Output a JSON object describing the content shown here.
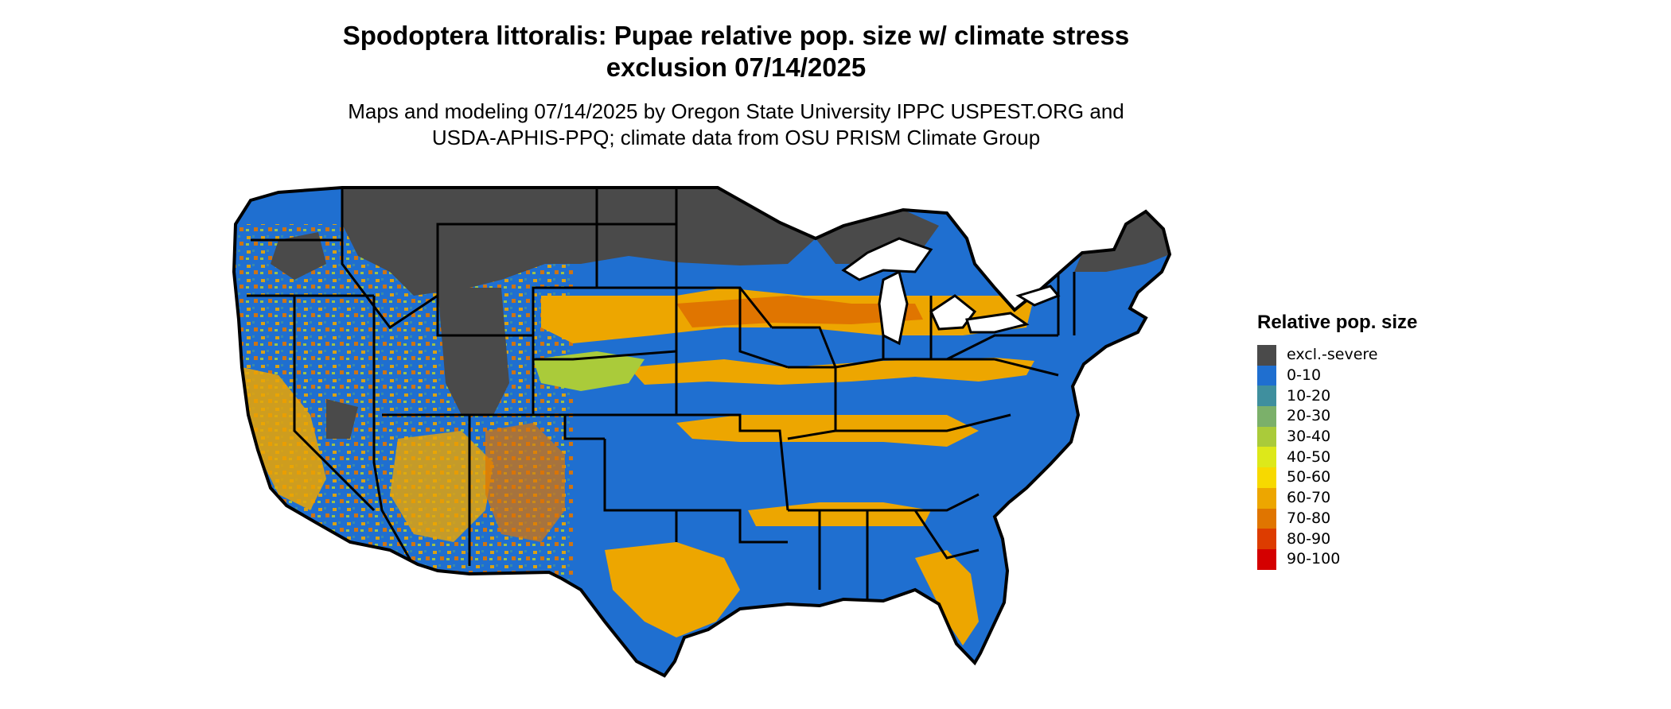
{
  "title_line1": "Spodoptera littoralis: Pupae relative pop. size w/ climate stress",
  "title_line2": "exclusion 07/14/2025",
  "subtitle_line1": "Maps and modeling 07/14/2025 by Oregon State University IPPC USPEST.ORG and",
  "subtitle_line2": "USDA-APHIS-PPQ; climate data from OSU PRISM Climate Group",
  "legend": {
    "title": "Relative pop. size",
    "items": [
      {
        "label": "excl.-severe",
        "color": "#4a4a4a"
      },
      {
        "label": "0-10",
        "color": "#1f6fd0"
      },
      {
        "label": "10-20",
        "color": "#3f8f9e"
      },
      {
        "label": "20-30",
        "color": "#7bb06a"
      },
      {
        "label": "30-40",
        "color": "#aacb3a"
      },
      {
        "label": "40-50",
        "color": "#dde81a"
      },
      {
        "label": "50-60",
        "color": "#f7d900"
      },
      {
        "label": "60-70",
        "color": "#eda600"
      },
      {
        "label": "70-80",
        "color": "#e07500"
      },
      {
        "label": "80-90",
        "color": "#dd3c00"
      },
      {
        "label": "90-100",
        "color": "#d40000"
      }
    ]
  }
}
